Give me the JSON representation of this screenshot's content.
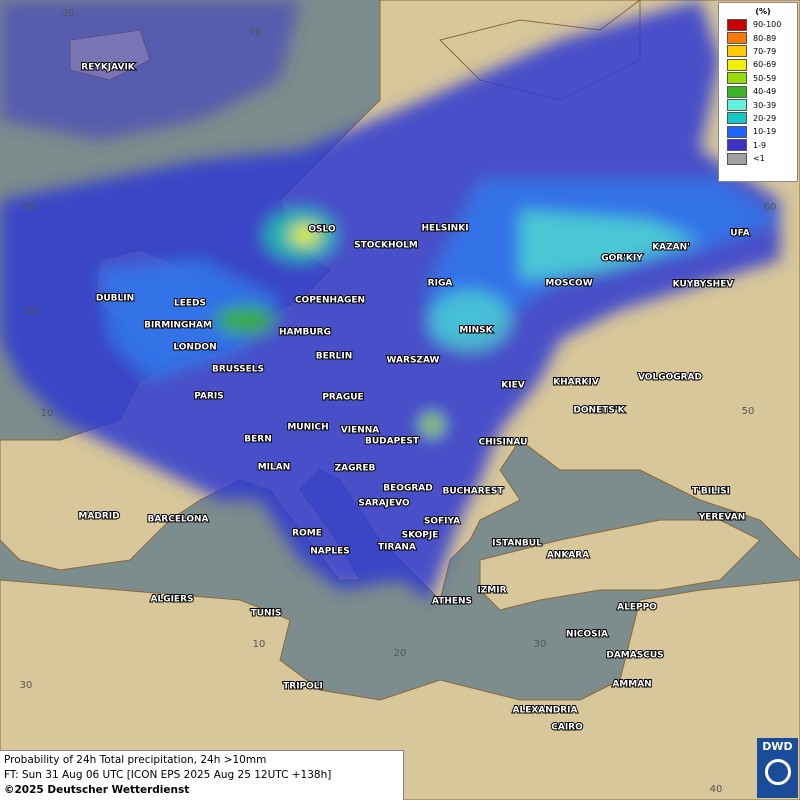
{
  "map": {
    "grid_labels": [
      "30",
      "70",
      "20",
      "50",
      "10",
      "60",
      "50",
      "10",
      "20",
      "30",
      "30",
      "40"
    ],
    "cities": [
      "REYKJAVIK",
      "OSLO",
      "STOCKHOLM",
      "HELSINKI",
      "DUBLIN",
      "LEEDS",
      "BIRMINGHAM",
      "LONDON",
      "COPENHAGEN",
      "RIGA",
      "MOSCOW",
      "GOR'KIY",
      "KAZAN'",
      "UFA",
      "KUYBYSHEV",
      "MINSK",
      "HAMBURG",
      "BERLIN",
      "WARSZAW",
      "BRUSSELS",
      "PARIS",
      "KIEV",
      "KHARKIV",
      "VOLGOGRAD",
      "DONETS'K",
      "PRAGUE",
      "MUNICH",
      "VIENNA",
      "BUDAPEST",
      "BERN",
      "CHISINAU",
      "MILAN",
      "ZAGREB",
      "BEOGRAD",
      "BUCHAREST",
      "T'BILISI",
      "SARAJEVO",
      "MADRID",
      "BARCELONA",
      "ROME",
      "SOFIYA",
      "YEREVAN",
      "SKOPJE",
      "NAPLES",
      "TIRANA",
      "ISTANBUL",
      "ANKARA",
      "IZMIR",
      "ALGIERS",
      "ATHENS",
      "ALEPPO",
      "TUNIS",
      "NICOSIA",
      "DAMASCUS",
      "TRIPOLI",
      "AMMAN",
      "ALEXANDRIA",
      "CAIRO"
    ]
  },
  "legend": {
    "title": "(%)",
    "entries": [
      {
        "label": "90-100",
        "color": "#c80000"
      },
      {
        "label": "80-89",
        "color": "#ff7800"
      },
      {
        "label": "70-79",
        "color": "#ffc800"
      },
      {
        "label": "60-69",
        "color": "#f0f000"
      },
      {
        "label": "50-59",
        "color": "#96dc00"
      },
      {
        "label": "40-49",
        "color": "#3cb428"
      },
      {
        "label": "30-39",
        "color": "#64f0dc"
      },
      {
        "label": "20-29",
        "color": "#14c8c8"
      },
      {
        "label": "10-19",
        "color": "#1e64ff"
      },
      {
        "label": "1-9",
        "color": "#3c32c8"
      },
      {
        "label": "<1",
        "color": "#a0a0a0"
      }
    ]
  },
  "footer": {
    "lines": [
      "Probability of 24h Total precipitation, 24h >10mm",
      "FT: Sun 31 Aug 06 UTC [ICON EPS 2025 Aug 25 12UTC +138h]",
      "©2025 Deutscher Wetterdienst"
    ]
  },
  "logo": "DWD"
}
